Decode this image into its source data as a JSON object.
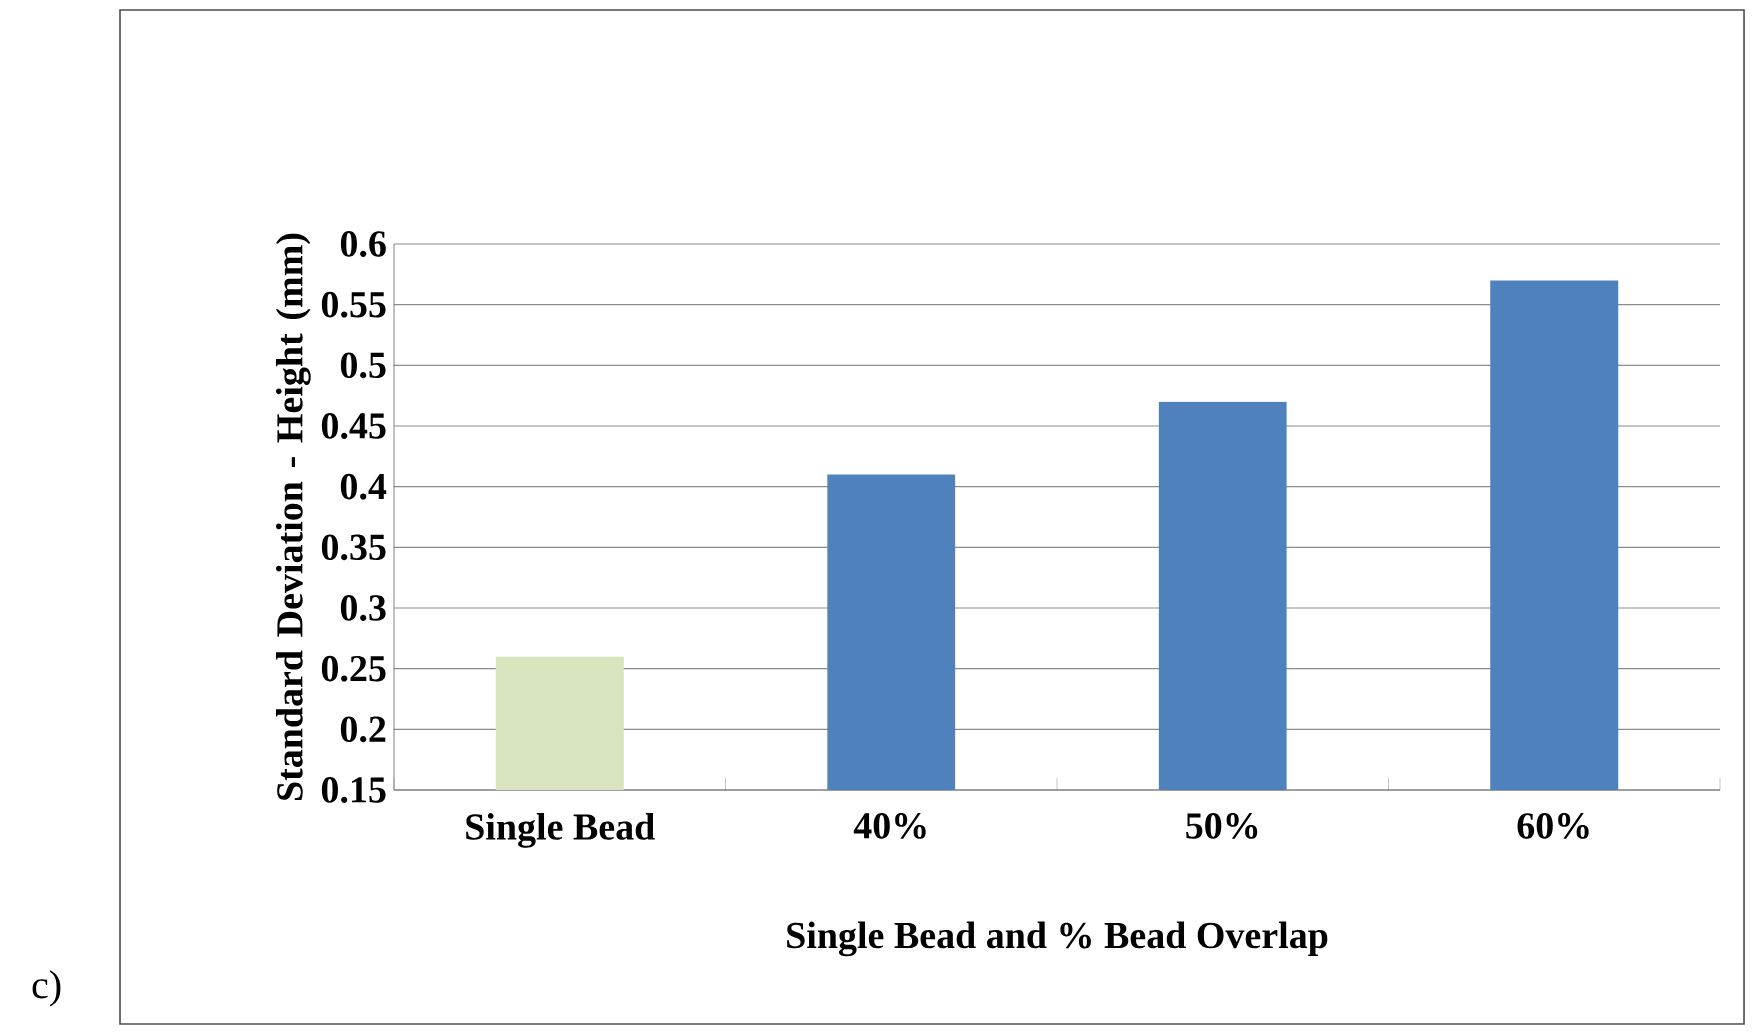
{
  "chart_data": {
    "type": "bar",
    "xlabel": "Single Bead and % Bead Overlap",
    "ylabel": "Standard Deviation - Height (mm)",
    "categories": [
      "Single Bead",
      "40%",
      "50%",
      "60%"
    ],
    "values": [
      0.26,
      0.41,
      0.47,
      0.57
    ],
    "colors": [
      "#d7e4bd",
      "#4f81bd",
      "#4f81bd",
      "#4f81bd"
    ],
    "ylim": [
      0.15,
      0.6
    ],
    "yticks": [
      0.15,
      0.2,
      0.25,
      0.3,
      0.35,
      0.4,
      0.45,
      0.5,
      0.55,
      0.6
    ],
    "grid": "y",
    "annotations": [
      "c)"
    ]
  }
}
